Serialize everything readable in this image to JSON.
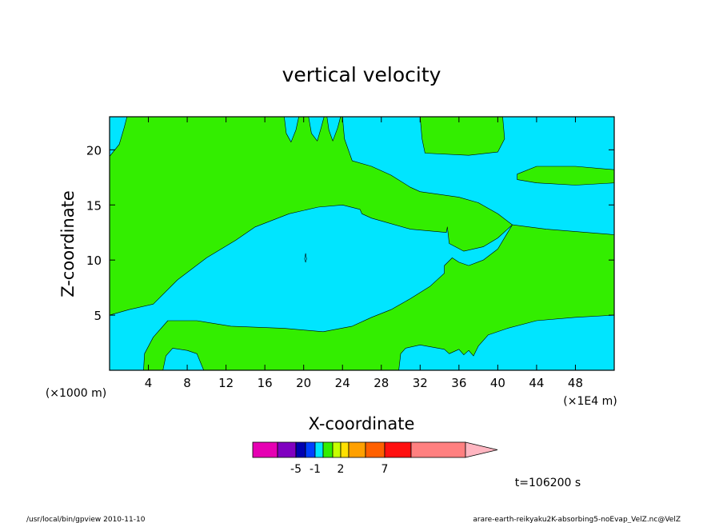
{
  "chart_data": {
    "type": "heatmap",
    "title": "vertical velocity",
    "xlabel": "X-coordinate",
    "ylabel": "Z-coordinate",
    "x_unit_left": "(×1000 m)",
    "x_unit_right": "(×1E4 m)",
    "xlim": [
      0,
      52
    ],
    "ylim": [
      0,
      23
    ],
    "x_ticks": [
      4,
      8,
      12,
      16,
      20,
      24,
      28,
      32,
      36,
      40,
      44,
      48
    ],
    "x_tick_labels": [
      "4",
      "8",
      "12",
      "16",
      "20",
      "24",
      "28",
      "32",
      "36",
      "40",
      "44",
      "48"
    ],
    "y_ticks": [
      5,
      10,
      15,
      20
    ],
    "y_tick_labels": [
      "5",
      "10",
      "15",
      "20"
    ],
    "background_level_color": "#00e5ff",
    "regions": [
      {
        "level": "green",
        "color": "#33ee00",
        "points": [
          [
            0,
            13
          ],
          [
            2.5,
            14.8
          ],
          [
            5,
            16
          ],
          [
            9,
            16.5
          ],
          [
            12,
            17
          ],
          [
            13,
            17.5
          ],
          [
            12,
            18.3
          ],
          [
            6.5,
            18.6
          ],
          [
            3,
            18.3
          ],
          [
            0,
            16.8
          ]
        ]
      },
      {
        "level": "green",
        "color": "#33ee00",
        "points": [
          [
            0,
            19.4
          ],
          [
            1,
            20.5
          ],
          [
            1.5,
            22
          ],
          [
            1.8,
            23
          ],
          [
            18,
            23
          ],
          [
            18.2,
            21.5
          ],
          [
            18.7,
            20.7
          ],
          [
            19.2,
            21.8
          ],
          [
            19.5,
            23
          ],
          [
            20.5,
            23
          ],
          [
            20.8,
            21.5
          ],
          [
            21.4,
            20.8
          ],
          [
            21.8,
            22
          ],
          [
            22.1,
            23
          ],
          [
            22.4,
            23
          ],
          [
            22.6,
            21.8
          ],
          [
            23,
            20.8
          ],
          [
            23.5,
            22
          ],
          [
            23.8,
            23
          ],
          [
            24,
            23
          ],
          [
            24.2,
            21
          ],
          [
            25,
            19
          ],
          [
            27,
            18.5
          ],
          [
            29,
            17.7
          ],
          [
            31,
            16.6
          ],
          [
            32,
            16.2
          ],
          [
            36,
            15.7
          ],
          [
            38,
            15.2
          ],
          [
            40,
            14.2
          ],
          [
            41.5,
            13.2
          ],
          [
            40,
            12
          ],
          [
            38.5,
            11.2
          ],
          [
            36.5,
            10.8
          ],
          [
            35,
            11.5
          ],
          [
            34.8,
            13
          ],
          [
            34.7,
            12.5
          ],
          [
            31,
            12.8
          ],
          [
            27,
            13.8
          ],
          [
            26,
            14.2
          ],
          [
            25.8,
            14.6
          ],
          [
            24,
            15
          ],
          [
            21.5,
            14.8
          ],
          [
            18.5,
            14.2
          ],
          [
            15,
            13
          ],
          [
            13,
            11.8
          ],
          [
            10,
            10.2
          ],
          [
            7,
            8.2
          ],
          [
            4.5,
            6
          ],
          [
            2,
            5.5
          ],
          [
            0,
            5
          ]
        ]
      },
      {
        "level": "green",
        "color": "#33ee00",
        "points": [
          [
            34.5,
            9.5
          ],
          [
            35.3,
            10.2
          ],
          [
            36,
            9.8
          ],
          [
            37,
            9.5
          ],
          [
            38.5,
            10
          ],
          [
            40,
            11
          ],
          [
            41.5,
            13.2
          ],
          [
            45,
            12.8
          ],
          [
            52,
            12.3
          ],
          [
            52,
            5
          ],
          [
            48,
            4.8
          ],
          [
            44,
            4.5
          ],
          [
            41,
            3.8
          ],
          [
            39,
            3.2
          ],
          [
            38,
            2.2
          ],
          [
            37.5,
            1.3
          ],
          [
            37,
            1.8
          ],
          [
            36.5,
            1.4
          ],
          [
            36,
            1.9
          ],
          [
            35,
            1.5
          ],
          [
            34.5,
            1.9
          ],
          [
            32,
            2.3
          ],
          [
            30.5,
            2
          ],
          [
            30,
            1.5
          ],
          [
            29.8,
            0
          ],
          [
            3.5,
            0
          ],
          [
            3.6,
            1.5
          ],
          [
            4.5,
            3
          ],
          [
            6,
            4.5
          ],
          [
            9,
            4.5
          ],
          [
            12.5,
            4
          ],
          [
            18,
            3.8
          ],
          [
            22,
            3.5
          ],
          [
            25,
            4
          ],
          [
            27,
            4.8
          ],
          [
            29,
            5.5
          ],
          [
            31,
            6.5
          ],
          [
            33,
            7.6
          ],
          [
            34.5,
            8.8
          ]
        ]
      },
      {
        "level": "green",
        "color": "#33ee00",
        "points": [
          [
            32,
            23
          ],
          [
            40.5,
            23
          ],
          [
            40.7,
            21
          ],
          [
            40,
            19.8
          ],
          [
            37,
            19.5
          ],
          [
            32.5,
            19.7
          ],
          [
            32.2,
            21
          ]
        ]
      },
      {
        "level": "green",
        "color": "#33ee00",
        "points": [
          [
            42,
            17.8
          ],
          [
            44,
            18.5
          ],
          [
            48,
            18.5
          ],
          [
            52,
            18.2
          ],
          [
            52,
            17
          ],
          [
            48,
            16.8
          ],
          [
            44,
            17
          ],
          [
            42,
            17.3
          ]
        ]
      },
      {
        "level": "cyan",
        "color": "#00e5ff",
        "points": [
          [
            5.5,
            0
          ],
          [
            5.8,
            1.3
          ],
          [
            6.5,
            2
          ],
          [
            8,
            1.8
          ],
          [
            9,
            1.5
          ],
          [
            9.7,
            0
          ]
        ]
      },
      {
        "level": "cyan",
        "color": "#00e5ff",
        "points": [
          [
            20.1,
            10.1
          ],
          [
            20.2,
            10.6
          ],
          [
            20.3,
            10.1
          ],
          [
            20.2,
            9.8
          ]
        ]
      }
    ],
    "colorbar": {
      "colors": [
        "#e600b3",
        "#8000c0",
        "#0000b0",
        "#0040ff",
        "#00e5ff",
        "#33ee00",
        "#c6ff00",
        "#ffe000",
        "#ffa000",
        "#ff6000",
        "#ff1010",
        "#ff8080",
        "#ffb6c1"
      ],
      "labels": [
        {
          "text": "-5",
          "at_boundary": 2
        },
        {
          "text": "-1",
          "at_boundary": 4
        },
        {
          "text": "2",
          "at_boundary": 7
        },
        {
          "text": "7",
          "at_boundary": 10
        }
      ]
    },
    "time_label": "t=106200 s"
  },
  "footer": {
    "left": "/usr/local/bin/gpview  2010-11-10",
    "right": "arare-earth-reikyaku2K-absorbing5-noEvap_VelZ.nc@VelZ"
  }
}
